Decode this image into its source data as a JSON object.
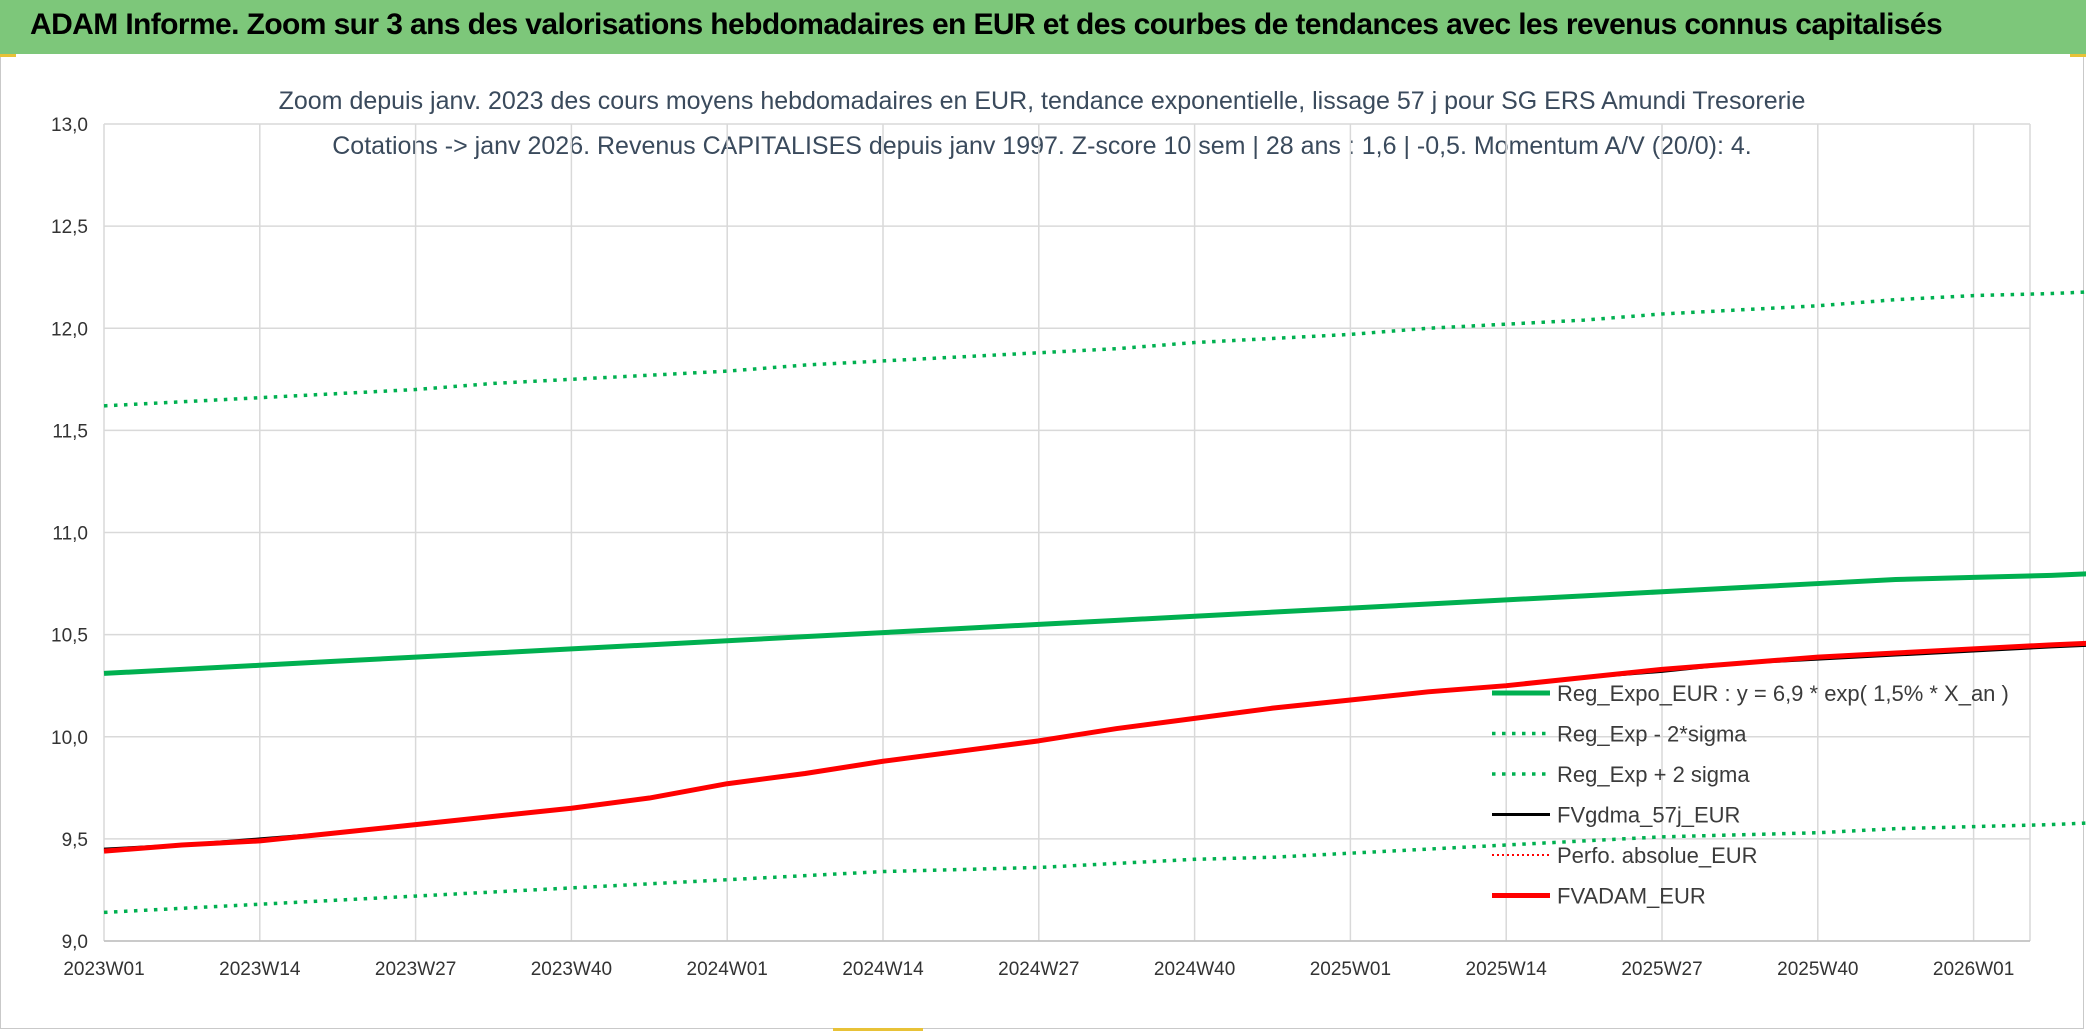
{
  "header": {
    "title": "ADAM Informe. Zoom sur 3 ans des valorisations hebdomadaires en EUR et des courbes de tendances avec les revenus connus capitalisés"
  },
  "colors": {
    "banner": "#7dc77a",
    "green": "#00b050",
    "red": "#ff0000",
    "black": "#000000",
    "grid": "#d9d9d9",
    "accent": "#e8c237"
  },
  "chart_data": {
    "type": "line",
    "title_line1": "Zoom depuis janv. 2023 des cours moyens hebdomadaires en EUR, tendance exponentielle, lissage 57 j pour SG ERS Amundi Tresorerie",
    "title_line2": "Cotations -> janv 2026. Revenus CAPITALISES depuis janv 1997. Z-score 10 sem | 28 ans : 1,6 | -0,5. Momentum A/V (20/0): 4.",
    "x_tick_labels": [
      "2023W01",
      "2023W14",
      "2023W27",
      "2023W40",
      "2024W01",
      "2024W14",
      "2024W27",
      "2024W40",
      "2025W01",
      "2025W14",
      "2025W27",
      "2025W40",
      "2026W01"
    ],
    "y_tick_labels": [
      "9,0",
      "9,5",
      "10,0",
      "10,5",
      "11,0",
      "11,5",
      "12,0",
      "12,5",
      "13,0"
    ],
    "ylim": [
      9.0,
      13.0
    ],
    "x_start_tick": 0,
    "x_end_tick": 12.8,
    "grid": true,
    "legend_position": "right, lower middle",
    "x": [
      0,
      0.5,
      1,
      1.5,
      2,
      2.5,
      3,
      3.5,
      4,
      4.5,
      5,
      5.5,
      6,
      6.5,
      7,
      7.5,
      8,
      8.5,
      9,
      9.5,
      10,
      10.5,
      11,
      11.5,
      12,
      12.5,
      12.8
    ],
    "series": [
      {
        "name": "Reg_Expo_EUR : y = 6,9 * exp( 1,5% *  X_an )",
        "color": "#00b050",
        "style": "solid",
        "width": 5,
        "values": [
          10.31,
          10.33,
          10.35,
          10.37,
          10.39,
          10.41,
          10.43,
          10.45,
          10.47,
          10.49,
          10.51,
          10.53,
          10.55,
          10.57,
          10.59,
          10.61,
          10.63,
          10.65,
          10.67,
          10.69,
          10.71,
          10.73,
          10.75,
          10.77,
          10.78,
          10.79,
          10.8
        ]
      },
      {
        "name": "Reg_Exp - 2*sigma",
        "color": "#00b050",
        "style": "dotted",
        "width": 3.5,
        "values": [
          9.14,
          9.16,
          9.18,
          9.2,
          9.22,
          9.24,
          9.26,
          9.28,
          9.3,
          9.32,
          9.34,
          9.35,
          9.36,
          9.38,
          9.4,
          9.41,
          9.43,
          9.45,
          9.47,
          9.49,
          9.51,
          9.52,
          9.53,
          9.55,
          9.56,
          9.57,
          9.58
        ]
      },
      {
        "name": "Reg_Exp + 2 sigma",
        "color": "#00b050",
        "style": "dotted",
        "width": 3.5,
        "values": [
          11.62,
          11.64,
          11.66,
          11.68,
          11.7,
          11.73,
          11.75,
          11.77,
          11.79,
          11.82,
          11.84,
          11.86,
          11.88,
          11.9,
          11.93,
          11.95,
          11.97,
          12.0,
          12.02,
          12.04,
          12.07,
          12.09,
          12.11,
          12.14,
          12.16,
          12.17,
          12.18
        ]
      },
      {
        "name": "FVgdma_57j_EUR",
        "color": "#000000",
        "style": "solid",
        "width": 3,
        "values": [
          9.45,
          9.47,
          9.5,
          9.53,
          9.57,
          9.61,
          9.65,
          9.7,
          9.77,
          9.82,
          9.88,
          9.93,
          9.98,
          10.04,
          10.09,
          10.14,
          10.18,
          10.22,
          10.25,
          10.29,
          10.32,
          10.36,
          10.38,
          10.4,
          10.42,
          10.44,
          10.45
        ]
      },
      {
        "name": "Perfo. absolue_EUR",
        "color": "#ff0000",
        "style": "dotted",
        "width": 2,
        "values": [
          9.44,
          9.47,
          9.49,
          9.53,
          9.57,
          9.61,
          9.65,
          9.7,
          9.77,
          9.82,
          9.88,
          9.93,
          9.98,
          10.04,
          10.09,
          10.14,
          10.18,
          10.22,
          10.25,
          10.29,
          10.33,
          10.36,
          10.39,
          10.41,
          10.43,
          10.45,
          10.46
        ]
      },
      {
        "name": "FVADAM_EUR",
        "color": "#ff0000",
        "style": "solid",
        "width": 5,
        "values": [
          9.44,
          9.47,
          9.49,
          9.53,
          9.57,
          9.61,
          9.65,
          9.7,
          9.77,
          9.82,
          9.88,
          9.93,
          9.98,
          10.04,
          10.09,
          10.14,
          10.18,
          10.22,
          10.25,
          10.29,
          10.33,
          10.36,
          10.39,
          10.41,
          10.43,
          10.45,
          10.46
        ]
      }
    ]
  }
}
